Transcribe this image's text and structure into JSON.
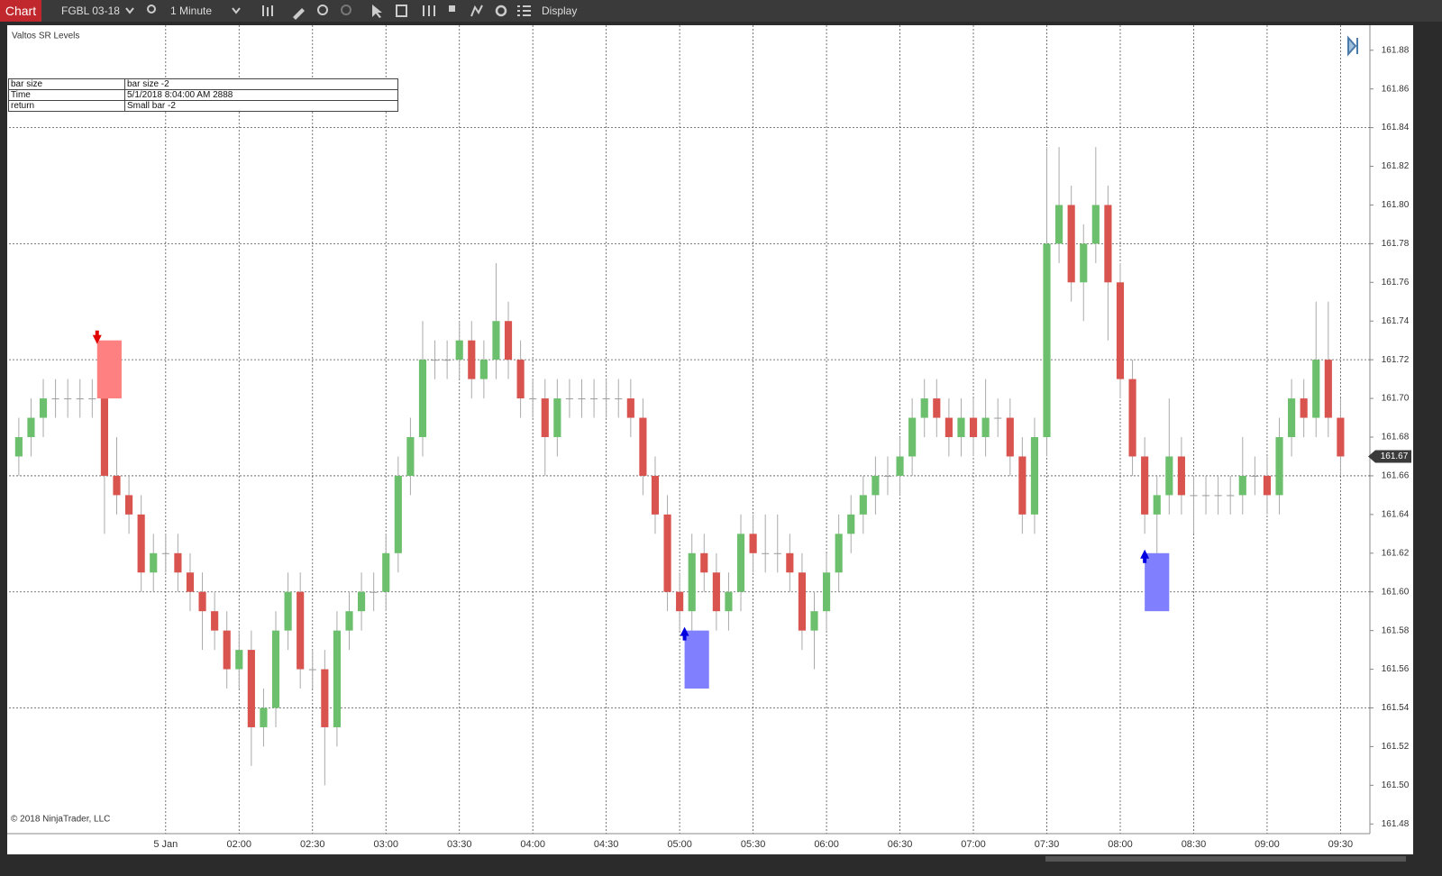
{
  "toolbar": {
    "tab": "Chart",
    "instrument": "FGBL 03-18",
    "interval": "1 Minute",
    "display": "Display"
  },
  "info_table": {
    "rows": [
      [
        "bar size",
        "bar size -2"
      ],
      [
        "Time",
        "5/1/2018 8:04:00 AM 2888"
      ],
      [
        "return",
        "Small bar -2"
      ]
    ]
  },
  "chart_data": {
    "type": "candlestick",
    "indicator": "Valtos SR Levels",
    "copyright": "© 2018 NinjaTrader, LLC",
    "up_color": "#6cbf6c",
    "down_color": "#d9534f",
    "flat_color": "#9a9a9a",
    "x": [
      "00:30",
      "00:35",
      "00:40",
      "00:45",
      "00:50",
      "00:55",
      "01:00",
      "01:05",
      "01:10",
      "01:15",
      "01:20",
      "01:25",
      "01:30",
      "01:35",
      "01:40",
      "01:45",
      "01:50",
      "01:55",
      "02:00",
      "02:05",
      "02:10",
      "02:15",
      "02:20",
      "02:25",
      "02:30",
      "02:35",
      "02:40",
      "02:45",
      "02:50",
      "02:55",
      "03:00",
      "03:05",
      "03:10",
      "03:15",
      "03:20",
      "03:25",
      "03:30",
      "03:35",
      "03:40",
      "03:45",
      "03:50",
      "03:55",
      "04:00",
      "04:05",
      "04:10",
      "04:15",
      "04:20",
      "04:25",
      "04:30",
      "04:35",
      "04:40",
      "04:45",
      "04:50",
      "04:55",
      "05:00",
      "05:05",
      "05:10",
      "05:15",
      "05:20",
      "05:25",
      "05:30",
      "05:35",
      "05:40",
      "05:45",
      "05:50",
      "05:55",
      "06:00",
      "06:05",
      "06:10",
      "06:15",
      "06:20",
      "06:25",
      "06:30",
      "06:35",
      "06:40",
      "06:45",
      "06:50",
      "06:55",
      "07:00",
      "07:05",
      "07:10",
      "07:15",
      "07:20",
      "07:25",
      "07:30",
      "07:35",
      "07:40",
      "07:45",
      "07:50",
      "07:55",
      "08:00",
      "08:05",
      "08:10",
      "08:15",
      "08:20",
      "08:25",
      "08:30",
      "08:35",
      "08:40",
      "08:45",
      "08:50",
      "08:55",
      "09:00",
      "09:05",
      "09:10",
      "09:15",
      "09:20",
      "09:25",
      "09:30"
    ],
    "open": [
      161.67,
      161.68,
      161.69,
      161.7,
      161.7,
      161.7,
      161.7,
      161.7,
      161.66,
      161.65,
      161.64,
      161.61,
      161.62,
      161.62,
      161.61,
      161.6,
      161.59,
      161.58,
      161.56,
      161.57,
      161.53,
      161.54,
      161.58,
      161.6,
      161.56,
      161.56,
      161.53,
      161.58,
      161.59,
      161.6,
      161.6,
      161.62,
      161.66,
      161.68,
      161.72,
      161.72,
      161.72,
      161.73,
      161.71,
      161.72,
      161.74,
      161.72,
      161.7,
      161.7,
      161.68,
      161.7,
      161.7,
      161.7,
      161.7,
      161.7,
      161.7,
      161.69,
      161.66,
      161.64,
      161.6,
      161.59,
      161.62,
      161.61,
      161.59,
      161.6,
      161.63,
      161.62,
      161.62,
      161.62,
      161.61,
      161.58,
      161.59,
      161.61,
      161.63,
      161.64,
      161.65,
      161.66,
      161.66,
      161.67,
      161.69,
      161.7,
      161.69,
      161.68,
      161.69,
      161.68,
      161.69,
      161.69,
      161.67,
      161.64,
      161.68,
      161.78,
      161.8,
      161.76,
      161.78,
      161.8,
      161.76,
      161.71,
      161.67,
      161.64,
      161.65,
      161.67,
      161.65,
      161.65,
      161.65,
      161.65,
      161.65,
      161.66,
      161.66,
      161.65,
      161.68,
      161.7,
      161.69,
      161.72,
      161.69
    ],
    "high": [
      161.69,
      161.7,
      161.71,
      161.71,
      161.71,
      161.71,
      161.71,
      161.71,
      161.68,
      161.66,
      161.65,
      161.63,
      161.63,
      161.63,
      161.62,
      161.61,
      161.6,
      161.59,
      161.58,
      161.58,
      161.55,
      161.59,
      161.61,
      161.61,
      161.57,
      161.57,
      161.59,
      161.6,
      161.61,
      161.61,
      161.63,
      161.67,
      161.69,
      161.74,
      161.73,
      161.73,
      161.74,
      161.74,
      161.73,
      161.77,
      161.75,
      161.73,
      161.71,
      161.71,
      161.71,
      161.71,
      161.71,
      161.71,
      161.71,
      161.71,
      161.71,
      161.7,
      161.67,
      161.65,
      161.61,
      161.63,
      161.63,
      161.62,
      161.61,
      161.64,
      161.64,
      161.64,
      161.64,
      161.63,
      161.62,
      161.6,
      161.62,
      161.64,
      161.65,
      161.66,
      161.67,
      161.67,
      161.68,
      161.7,
      161.71,
      161.71,
      161.7,
      161.7,
      161.7,
      161.71,
      161.7,
      161.7,
      161.68,
      161.69,
      161.83,
      161.83,
      161.81,
      161.79,
      161.83,
      161.81,
      161.77,
      161.72,
      161.68,
      161.66,
      161.7,
      161.68,
      161.66,
      161.66,
      161.66,
      161.66,
      161.68,
      161.67,
      161.67,
      161.69,
      161.71,
      161.71,
      161.75,
      161.75,
      161.7
    ],
    "low": [
      161.66,
      161.67,
      161.68,
      161.69,
      161.69,
      161.69,
      161.69,
      161.63,
      161.64,
      161.63,
      161.6,
      161.6,
      161.61,
      161.6,
      161.59,
      161.57,
      161.57,
      161.55,
      161.55,
      161.51,
      161.52,
      161.53,
      161.57,
      161.55,
      161.55,
      161.5,
      161.52,
      161.57,
      161.58,
      161.59,
      161.59,
      161.61,
      161.65,
      161.67,
      161.71,
      161.71,
      161.71,
      161.7,
      161.7,
      161.71,
      161.71,
      161.69,
      161.69,
      161.66,
      161.67,
      161.69,
      161.69,
      161.69,
      161.69,
      161.69,
      161.68,
      161.65,
      161.63,
      161.59,
      161.58,
      161.58,
      161.6,
      161.58,
      161.58,
      161.59,
      161.61,
      161.61,
      161.61,
      161.6,
      161.57,
      161.56,
      161.58,
      161.6,
      161.62,
      161.63,
      161.64,
      161.65,
      161.65,
      161.66,
      161.68,
      161.68,
      161.67,
      161.67,
      161.67,
      161.67,
      161.68,
      161.66,
      161.63,
      161.63,
      161.67,
      161.77,
      161.75,
      161.74,
      161.77,
      161.73,
      161.7,
      161.66,
      161.63,
      161.62,
      161.64,
      161.64,
      161.63,
      161.64,
      161.64,
      161.64,
      161.64,
      161.65,
      161.64,
      161.64,
      161.67,
      161.68,
      161.68,
      161.68,
      161.66
    ],
    "close": [
      161.68,
      161.69,
      161.7,
      161.7,
      161.7,
      161.7,
      161.7,
      161.66,
      161.65,
      161.64,
      161.61,
      161.62,
      161.62,
      161.61,
      161.6,
      161.59,
      161.58,
      161.56,
      161.57,
      161.53,
      161.54,
      161.58,
      161.6,
      161.56,
      161.56,
      161.53,
      161.58,
      161.59,
      161.6,
      161.6,
      161.62,
      161.66,
      161.68,
      161.72,
      161.72,
      161.72,
      161.73,
      161.71,
      161.72,
      161.74,
      161.72,
      161.7,
      161.7,
      161.68,
      161.7,
      161.7,
      161.7,
      161.7,
      161.7,
      161.7,
      161.69,
      161.66,
      161.64,
      161.6,
      161.59,
      161.62,
      161.61,
      161.59,
      161.6,
      161.63,
      161.62,
      161.62,
      161.62,
      161.61,
      161.58,
      161.59,
      161.61,
      161.63,
      161.64,
      161.65,
      161.66,
      161.66,
      161.67,
      161.69,
      161.7,
      161.69,
      161.68,
      161.69,
      161.68,
      161.69,
      161.69,
      161.67,
      161.64,
      161.68,
      161.78,
      161.8,
      161.76,
      161.78,
      161.8,
      161.76,
      161.71,
      161.67,
      161.64,
      161.65,
      161.67,
      161.65,
      161.65,
      161.65,
      161.65,
      161.65,
      161.66,
      161.66,
      161.65,
      161.68,
      161.7,
      161.69,
      161.72,
      161.69,
      161.67
    ],
    "xlim": [
      "00:26",
      "09:42"
    ],
    "xticks": [
      {
        "value": "01:30",
        "label": "5 Jan"
      },
      "02:00",
      "02:30",
      "03:00",
      "03:30",
      "04:00",
      "04:30",
      "05:00",
      "05:30",
      "06:00",
      "06:30",
      "07:00",
      "07:30",
      "08:00",
      "08:30",
      "09:00",
      "09:30"
    ],
    "ylim": [
      161.475,
      161.892
    ],
    "yticks": [
      161.48,
      {
        "value": 161.5,
        "label": "161.50"
      },
      161.52,
      161.54,
      161.56,
      161.58,
      {
        "value": 161.6,
        "label": "161.60"
      },
      161.62,
      161.64,
      161.66,
      161.68,
      {
        "value": 161.7,
        "label": "161.70"
      },
      161.72,
      161.74,
      161.76,
      161.78,
      {
        "value": 161.8,
        "label": "161.80"
      },
      161.82,
      161.84,
      161.86,
      161.88
    ],
    "ygrid": [
      161.54,
      161.6,
      161.66,
      161.72,
      161.78,
      161.84
    ],
    "last_price": 161.67,
    "zones": [
      {
        "x": [
          "01:02",
          "01:12"
        ],
        "y": [
          161.73,
          161.7
        ],
        "color": "#ff8080",
        "arrow": "down",
        "arrow_color": "#e00000"
      },
      {
        "x": [
          "05:02",
          "05:12"
        ],
        "y": [
          161.58,
          161.55
        ],
        "color": "#8080ff",
        "arrow": "up",
        "arrow_color": "#0000e0"
      },
      {
        "x": [
          "08:10",
          "08:20"
        ],
        "y": [
          161.62,
          161.59
        ],
        "color": "#8080ff",
        "arrow": "up",
        "arrow_color": "#0000e0"
      }
    ]
  }
}
